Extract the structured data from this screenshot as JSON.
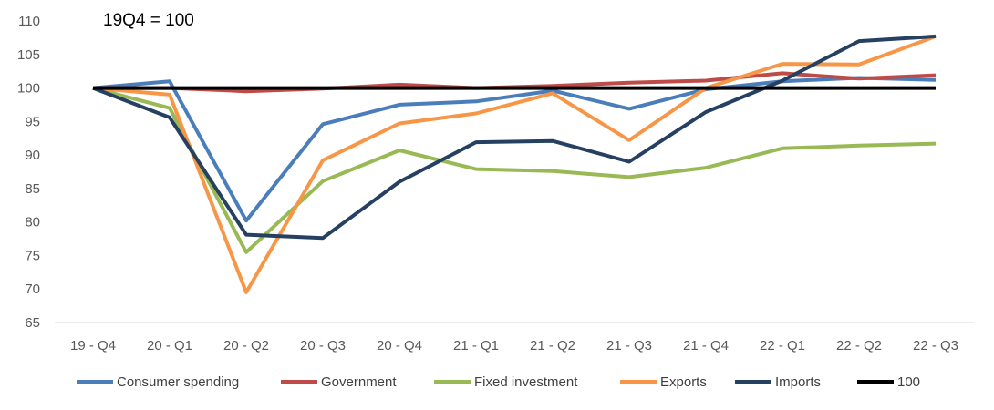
{
  "chart_data": {
    "type": "line",
    "title": "",
    "annotation": "19Q4 = 100",
    "xlabel": "",
    "ylabel": "",
    "ylim": [
      65,
      110
    ],
    "yticks": [
      65,
      70,
      75,
      80,
      85,
      90,
      95,
      100,
      105,
      110
    ],
    "grid": false,
    "legend_position": "bottom",
    "categories": [
      "19 - Q4",
      "20 - Q1",
      "20 - Q2",
      "20 - Q3",
      "20 - Q4",
      "21 - Q1",
      "21 - Q2",
      "21 - Q3",
      "21 - Q4",
      "22 - Q1",
      "22 - Q2",
      "22 - Q3"
    ],
    "series": [
      {
        "name": "Consumer spending",
        "color": "#4a7ebb",
        "values": [
          100,
          101,
          80.2,
          94.6,
          97.5,
          98,
          99.6,
          96.9,
          99.8,
          101,
          101.5,
          101.2
        ]
      },
      {
        "name": "Government",
        "color": "#be4b48",
        "values": [
          100,
          100,
          99.5,
          99.9,
          100.5,
          100,
          100.3,
          100.8,
          101.1,
          102.2,
          101.4,
          101.9
        ]
      },
      {
        "name": "Fixed investment",
        "color": "#98b954",
        "values": [
          100,
          97,
          75.5,
          86.1,
          90.7,
          87.9,
          87.6,
          86.7,
          88.1,
          91,
          91.4,
          91.7
        ]
      },
      {
        "name": "Exports",
        "color": "#f79646",
        "values": [
          100,
          99,
          69.5,
          89.2,
          94.7,
          96.2,
          99.2,
          92.2,
          100,
          103.6,
          103.5,
          107.7
        ]
      },
      {
        "name": "Imports",
        "color": "#254061",
        "values": [
          100,
          95.6,
          78.1,
          77.6,
          86,
          91.9,
          92.1,
          89,
          96.4,
          101.1,
          107,
          107.7
        ]
      },
      {
        "name": "100",
        "color": "#000000",
        "values": [
          100,
          100,
          100,
          100,
          100,
          100,
          100,
          100,
          100,
          100,
          100,
          100
        ]
      }
    ]
  }
}
